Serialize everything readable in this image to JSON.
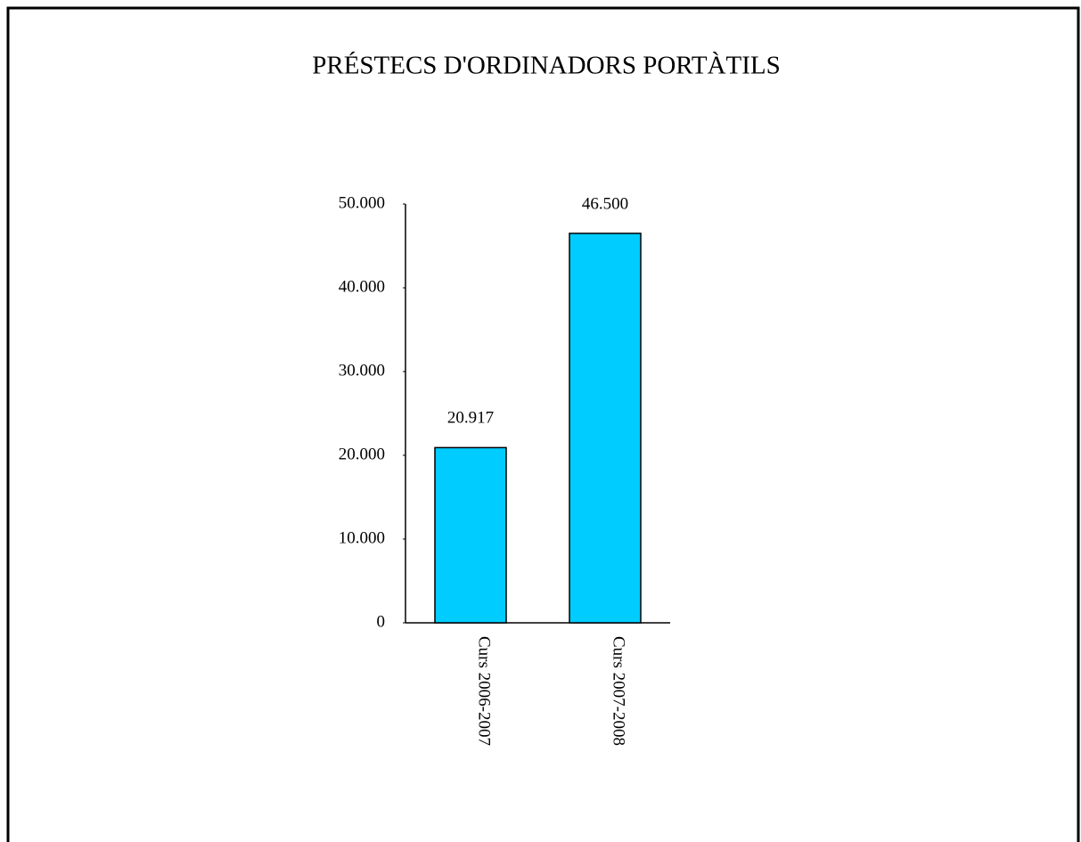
{
  "chart_data": {
    "type": "bar",
    "title": "PRÉSTECS D'ORDINADORS PORTÀTILS",
    "categories": [
      "Curs 2006-2007",
      "Curs 2007-2008"
    ],
    "values": [
      20917,
      46500
    ],
    "value_labels": [
      "20.917",
      "46.500"
    ],
    "color": "#00ccff",
    "ylim": [
      0,
      50000
    ],
    "yticks": [
      0,
      {
        "value": 10000,
        "label": "10.000"
      },
      {
        "value": 20000,
        "label": "20.000"
      },
      {
        "value": 30000,
        "label": "30.000"
      },
      {
        "value": 40000,
        "label": "40.000"
      },
      {
        "value": 50000,
        "label": "50.000"
      }
    ],
    "grid": false
  }
}
